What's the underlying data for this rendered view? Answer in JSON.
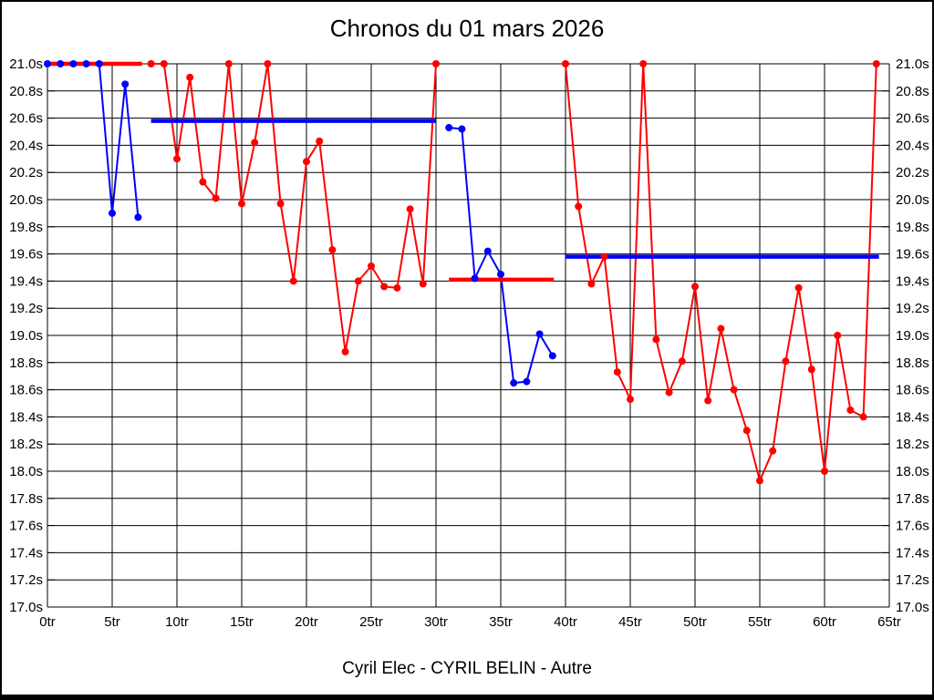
{
  "page": {
    "title": "Chronos du 01 mars 2026",
    "footer": "Cyril Elec - CYRIL BELIN - Autre"
  },
  "chart_data": {
    "type": "line",
    "title": "Chronos du 01 mars 2026",
    "footer": "Cyril Elec - CYRIL BELIN - Autre",
    "xlabel": "",
    "ylabel": "",
    "x_unit": "tr",
    "y_unit": "s",
    "xlim": [
      0,
      65
    ],
    "ylim": [
      17.0,
      21.0
    ],
    "x_tick_step": 5,
    "y_tick_step": 0.2,
    "grid": true,
    "legend": "none",
    "x_ticks": [
      "0tr",
      "5tr",
      "10tr",
      "15tr",
      "20tr",
      "25tr",
      "30tr",
      "35tr",
      "40tr",
      "45tr",
      "50tr",
      "55tr",
      "60tr",
      "65tr"
    ],
    "y_ticks": [
      "21.0s",
      "20.8s",
      "20.6s",
      "20.4s",
      "20.2s",
      "20.0s",
      "19.8s",
      "19.6s",
      "19.4s",
      "19.2s",
      "19.0s",
      "18.8s",
      "18.6s",
      "18.4s",
      "18.2s",
      "18.0s",
      "17.8s",
      "17.6s",
      "17.4s",
      "17.2s",
      "17.0s"
    ],
    "colors": {
      "red": "#ff0000",
      "blue": "#0000ff",
      "grid": "#000000",
      "background": "#ffffff"
    },
    "series": [
      {
        "name": "blue-run-1",
        "color_key": "blue",
        "points": [
          [
            0,
            21.0
          ],
          [
            1,
            21.0
          ],
          [
            2,
            21.0
          ],
          [
            3,
            21.0
          ],
          [
            4,
            21.0
          ],
          [
            5,
            19.9
          ],
          [
            6,
            20.85
          ],
          [
            7,
            19.87
          ]
        ]
      },
      {
        "name": "red-run-1",
        "color_key": "red",
        "points": [
          [
            8,
            21.0
          ],
          [
            9,
            21.0
          ],
          [
            10,
            20.3
          ],
          [
            11,
            20.9
          ],
          [
            12,
            20.13
          ],
          [
            13,
            20.01
          ],
          [
            14,
            21.0
          ],
          [
            15,
            19.97
          ],
          [
            16,
            20.42
          ],
          [
            17,
            21.0
          ],
          [
            18,
            19.97
          ],
          [
            19,
            19.4
          ],
          [
            20,
            20.28
          ],
          [
            21,
            20.43
          ],
          [
            22,
            19.63
          ],
          [
            23,
            18.88
          ],
          [
            24,
            19.4
          ],
          [
            25,
            19.51
          ],
          [
            26,
            19.36
          ],
          [
            27,
            19.35
          ],
          [
            28,
            19.93
          ],
          [
            29,
            19.38
          ],
          [
            30,
            21.0
          ]
        ]
      },
      {
        "name": "blue-run-2",
        "color_key": "blue",
        "points": [
          [
            31,
            20.53
          ],
          [
            32,
            20.52
          ],
          [
            33,
            19.42
          ],
          [
            34,
            19.62
          ],
          [
            35,
            19.45
          ],
          [
            36,
            18.65
          ],
          [
            37,
            18.66
          ],
          [
            38,
            19.01
          ],
          [
            39,
            18.85
          ]
        ]
      },
      {
        "name": "red-run-2",
        "color_key": "red",
        "points": [
          [
            40,
            21.0
          ],
          [
            41,
            19.95
          ],
          [
            42,
            19.38
          ],
          [
            43,
            19.58
          ],
          [
            44,
            18.73
          ],
          [
            45,
            18.53
          ],
          [
            46,
            21.0
          ],
          [
            47,
            18.97
          ],
          [
            48,
            18.58
          ],
          [
            49,
            18.81
          ],
          [
            50,
            19.36
          ],
          [
            51,
            18.52
          ],
          [
            52,
            19.05
          ],
          [
            53,
            18.6
          ],
          [
            54,
            18.3
          ],
          [
            55,
            17.93
          ],
          [
            56,
            18.15
          ],
          [
            57,
            18.81
          ],
          [
            58,
            19.35
          ],
          [
            59,
            18.75
          ],
          [
            60,
            18.0
          ],
          [
            61,
            19.0
          ],
          [
            62,
            18.45
          ],
          [
            63,
            18.4
          ],
          [
            64,
            21.0
          ]
        ]
      }
    ],
    "mean_lines": [
      {
        "name": "mean-segment-1",
        "color_key": "red",
        "y": 21.0,
        "x1": 0,
        "x2": 7.3
      },
      {
        "name": "mean-segment-2",
        "color_key": "blue",
        "y": 20.58,
        "x1": 8,
        "x2": 30
      },
      {
        "name": "mean-segment-3",
        "color_key": "red",
        "y": 19.41,
        "x1": 31,
        "x2": 39.1
      },
      {
        "name": "mean-segment-4",
        "color_key": "blue",
        "y": 19.58,
        "x1": 40,
        "x2": 64.2
      }
    ]
  }
}
